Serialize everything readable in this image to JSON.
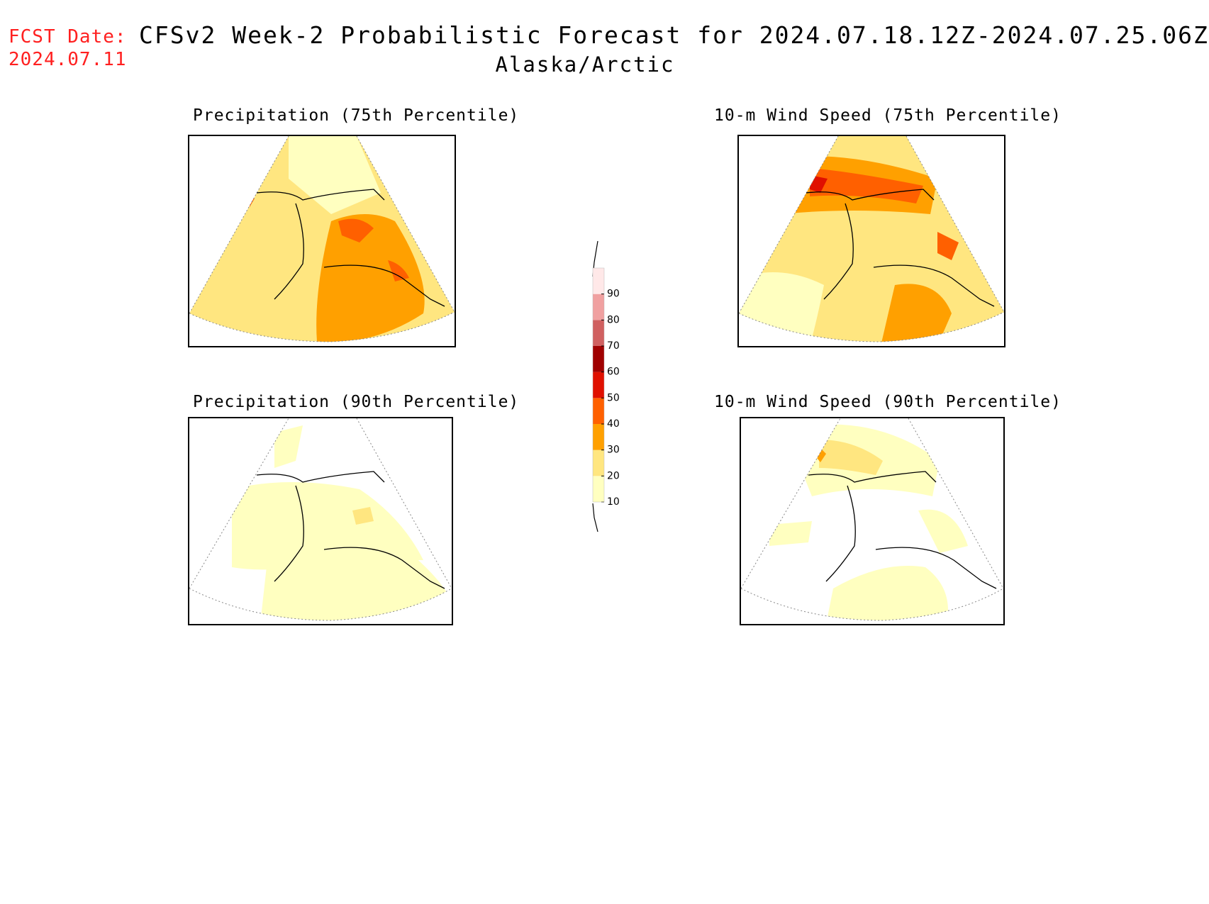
{
  "header": {
    "fcst_label": "FCST Date:",
    "fcst_date": "2024.07.11",
    "title": "CFSv2 Week-2 Probabilistic Forecast for 2024.07.18.12Z-2024.07.25.06Z",
    "region": "Alaska/Arctic"
  },
  "panels": {
    "precip75": {
      "title": "Precipitation (75th Percentile)"
    },
    "wind75": {
      "title": "10-m Wind Speed (75th Percentile)"
    },
    "precip90": {
      "title": "Precipitation (90th Percentile)"
    },
    "wind90": {
      "title": "10-m Wind Speed (90th Percentile)"
    }
  },
  "legend": {
    "levels": [
      "10",
      "20",
      "30",
      "40",
      "50",
      "60",
      "70",
      "80",
      "90"
    ],
    "colors": {
      "10": "#ffffc0",
      "20": "#ffe680",
      "30": "#ffa000",
      "40": "#ff6000",
      "50": "#e01000",
      "60": "#a00000",
      "70": "#d06060",
      "80": "#f0a0a0",
      "90": "#ffe8e8"
    }
  }
}
